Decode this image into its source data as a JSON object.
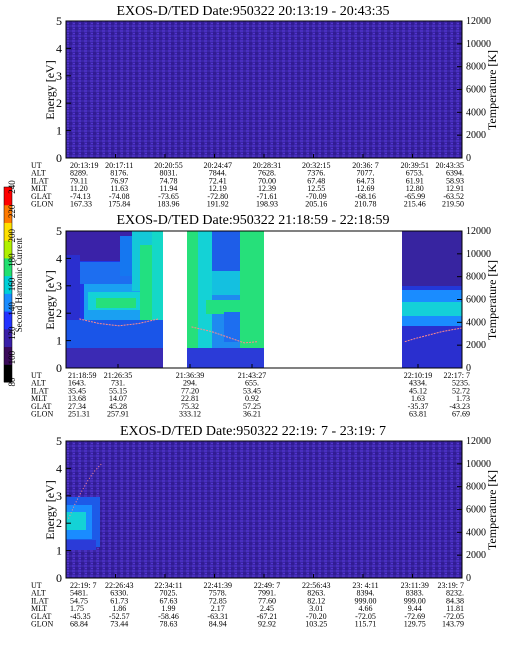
{
  "colorbar": {
    "label": "Second Harmonic Current",
    "ticks": [
      "80",
      "100",
      "120",
      "140",
      "160",
      "180",
      "200",
      "220",
      "240"
    ],
    "colors": [
      "#000000",
      "#3b0a5a",
      "#3a1fa8",
      "#2233ff",
      "#1a8cff",
      "#00d0d8",
      "#22e070",
      "#b0f000",
      "#ffe000",
      "#ff7a00",
      "#ff0000"
    ]
  },
  "panels": [
    {
      "title": "EXOS-D/TED   Date:950322  20:13:19 - 20:43:35",
      "ylabel": "Energy [eV]",
      "y2label": "Temperature [K]",
      "yticks": [
        "0",
        "1",
        "2",
        "3",
        "4",
        "5"
      ],
      "y2ticks": [
        "0",
        "2000",
        "4000",
        "6000",
        "8000",
        "10000",
        "12000"
      ],
      "table": [
        {
          "label": "UT",
          "values": [
            "20:13:19",
            "20:17:11",
            "20:20:55",
            "20:24:47",
            "20:28:31",
            "20:32:15",
            "20:36: 7",
            "20:39:51",
            "20:43:35"
          ]
        },
        {
          "label": "ALT",
          "values": [
            "8289.",
            "8176.",
            "8031.",
            "7844.",
            "7628.",
            "7376.",
            "7077.",
            "6753.",
            "6394."
          ]
        },
        {
          "label": "ILAT",
          "values": [
            "79.11",
            "76.97",
            "74.78",
            "72.41",
            "70.00",
            "67.48",
            "64.73",
            "61.91",
            "58.93"
          ]
        },
        {
          "label": "MLT",
          "values": [
            "11.20",
            "11.63",
            "11.94",
            "12.19",
            "12.39",
            "12.55",
            "12.69",
            "12.80",
            "12.91"
          ]
        },
        {
          "label": "GLAT",
          "values": [
            "-74.13",
            "-74.08",
            "-73.65",
            "-72.80",
            "-71.61",
            "-70.09",
            "-68.16",
            "-65.99",
            "-63.52"
          ]
        },
        {
          "label": "GLON",
          "values": [
            "167.33",
            "175.84",
            "183.96",
            "191.92",
            "198.93",
            "205.16",
            "210.78",
            "215.46",
            "219.50"
          ]
        }
      ]
    },
    {
      "title": "EXOS-D/TED   Date:950322  21:18:59 - 22:18:59",
      "ylabel": "Energy [eV]",
      "y2label": "Temperature [K]",
      "yticks": [
        "0",
        "1",
        "2",
        "3",
        "4",
        "5"
      ],
      "y2ticks": [
        "0",
        "2000",
        "4000",
        "6000",
        "8000",
        "10000",
        "12000"
      ],
      "table": [
        {
          "label": "UT",
          "values": [
            "21:18:59",
            "21:26:35",
            "21:36:39",
            "21:43:27",
            "22:10:19",
            "22:17: 7"
          ]
        },
        {
          "label": "ALT",
          "values": [
            "1643.",
            "731.",
            "294.",
            "655.",
            "4334.",
            "5235."
          ]
        },
        {
          "label": "ILAT",
          "values": [
            "35.45",
            "55.15",
            "77.20",
            "53.45",
            "45.12",
            "52.72"
          ]
        },
        {
          "label": "MLT",
          "values": [
            "13.68",
            "14.07",
            "22.81",
            "0.92",
            "1.63",
            "1.73"
          ]
        },
        {
          "label": "GLAT",
          "values": [
            "27.34",
            "45.28",
            "75.32",
            "57.25",
            "-35.37",
            "-43.23"
          ]
        },
        {
          "label": "GLON",
          "values": [
            "251.31",
            "257.91",
            "333.12",
            "36.21",
            "63.81",
            "67.69"
          ]
        }
      ]
    },
    {
      "title": "EXOS-D/TED   Date:950322  22:19: 7 - 23:19: 7",
      "ylabel": "Energy [eV]",
      "y2label": "Temperature [K]",
      "yticks": [
        "0",
        "1",
        "2",
        "3",
        "4",
        "5"
      ],
      "y2ticks": [
        "0",
        "2000",
        "4000",
        "6000",
        "8000",
        "10000",
        "12000"
      ],
      "table": [
        {
          "label": "UT",
          "values": [
            "22:19: 7",
            "22:26:43",
            "22:34:11",
            "22:41:39",
            "22:49: 7",
            "22:56:43",
            "23: 4:11",
            "23:11:39",
            "23:19: 7"
          ]
        },
        {
          "label": "ALT",
          "values": [
            "5481.",
            "6330.",
            "7025.",
            "7578.",
            "7991.",
            "8263.",
            "8394.",
            "8383.",
            "8232."
          ]
        },
        {
          "label": "ILAT",
          "values": [
            "54.75",
            "61.73",
            "67.63",
            "72.85",
            "77.60",
            "82.12",
            "999.00",
            "999.00",
            "84.38"
          ]
        },
        {
          "label": "MLT",
          "values": [
            "1.75",
            "1.86",
            "1.99",
            "2.17",
            "2.45",
            "3.01",
            "4.66",
            "9.44",
            "11.81"
          ]
        },
        {
          "label": "GLAT",
          "values": [
            "-45.35",
            "-52.57",
            "-58.46",
            "-63.31",
            "-67.21",
            "-70.20",
            "-72.05",
            "-72.69",
            "-72.05"
          ]
        },
        {
          "label": "GLON",
          "values": [
            "68.84",
            "73.44",
            "78.63",
            "84.94",
            "92.92",
            "103.25",
            "115.71",
            "129.75",
            "143.79"
          ]
        }
      ]
    }
  ],
  "chart_data": [
    {
      "type": "heatmap",
      "title": "EXOS-D/TED   Date:950322  20:13:19 - 20:43:35",
      "ylabel": "Energy [eV]",
      "y2label": "Temperature [K]",
      "ylim": [
        0,
        5
      ],
      "y2lim": [
        0,
        12000
      ],
      "x_range": [
        "20:13:19",
        "20:43:35"
      ],
      "description_of_values": "uniform low level (about 110) across all energies; no data gaps",
      "temperature": []
    },
    {
      "type": "heatmap",
      "title": "EXOS-D/TED   Date:950322  21:18:59 - 22:18:59",
      "ylabel": "Energy [eV]",
      "y2label": "Temperature [K]",
      "ylim": [
        0,
        5
      ],
      "y2lim": [
        0,
        12000
      ],
      "x_range": [
        "21:18:59",
        "22:18:59"
      ],
      "data_gaps": [
        [
          "21:35:00",
          "21:36:39"
        ],
        [
          "21:49:00",
          "22:10:19"
        ]
      ],
      "temperature": [
        {
          "t": "21:21:00",
          "K": 4300
        },
        {
          "t": "21:24:00",
          "K": 3900
        },
        {
          "t": "21:27:00",
          "K": 3700
        },
        {
          "t": "21:30:00",
          "K": 3900
        },
        {
          "t": "21:33:00",
          "K": 4300
        },
        {
          "t": "21:38:00",
          "K": 3600
        },
        {
          "t": "21:41:00",
          "K": 3200
        },
        {
          "t": "21:44:00",
          "K": 2600
        },
        {
          "t": "21:46:00",
          "K": 2200
        },
        {
          "t": "21:48:00",
          "K": 2300
        },
        {
          "t": "22:10:19",
          "K": 2300
        },
        {
          "t": "22:12:00",
          "K": 2600
        },
        {
          "t": "22:14:00",
          "K": 2900
        },
        {
          "t": "22:16:00",
          "K": 3200
        },
        {
          "t": "22:18:59",
          "K": 3500
        }
      ]
    },
    {
      "type": "heatmap",
      "title": "EXOS-D/TED   Date:950322  22:19: 7 - 23:19: 7",
      "ylabel": "Energy [eV]",
      "y2label": "Temperature [K]",
      "ylim": [
        0,
        5
      ],
      "y2lim": [
        0,
        12000
      ],
      "x_range": [
        "22:19: 7",
        "23:19: 7"
      ],
      "description_of_values": "enhanced flux near 1.5-3 eV during first ~3 minutes, otherwise uniform low level",
      "temperature": [
        {
          "t": "22:19:30",
          "K": 5200
        },
        {
          "t": "22:20:30",
          "K": 6500
        },
        {
          "t": "22:21:30",
          "K": 7600
        },
        {
          "t": "22:22:30",
          "K": 8600
        },
        {
          "t": "22:23:30",
          "K": 9400
        },
        {
          "t": "22:24:30",
          "K": 10000
        }
      ]
    }
  ]
}
